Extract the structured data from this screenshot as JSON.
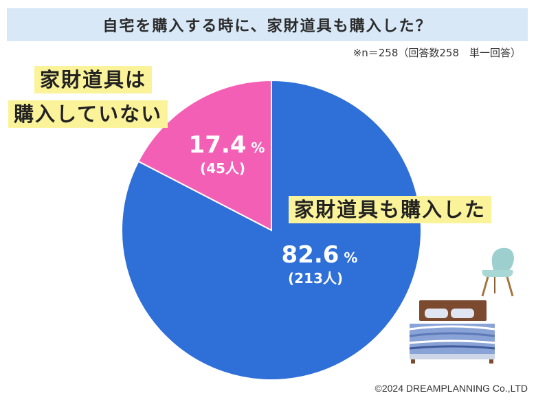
{
  "title": "自宅を購入する時に、家財道具も購入した？",
  "note": "※n＝258（回答数258　単一回答）",
  "credit": "©2024 DREAMPLANNING Co.,LTD",
  "chart_data": {
    "type": "pie",
    "total": 258,
    "slices": [
      {
        "label": "家財道具も購入した",
        "percent": 82.6,
        "count": 213,
        "count_text": "(213人)",
        "color": "#2e6fd8"
      },
      {
        "label": "家財道具は購入していない",
        "percent": 17.4,
        "count": 45,
        "count_text": "(45人)",
        "color": "#f35fb5"
      }
    ],
    "label_lines": {
      "bought": [
        "家財道具も購入した"
      ],
      "not_bought": [
        "家財道具は",
        "購入していない"
      ]
    },
    "percent_sign": "%"
  },
  "icons": [
    "chair-illustration",
    "bed-illustration"
  ]
}
